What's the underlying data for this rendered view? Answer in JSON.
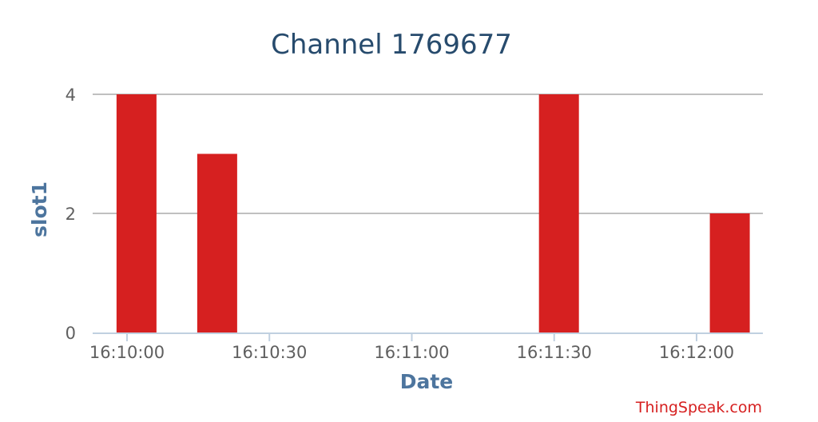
{
  "chart_data": {
    "type": "bar",
    "title": "Channel 1769677",
    "xlabel": "Date",
    "ylabel": "slot1",
    "x_tick_labels": [
      "16:10:00",
      "16:10:30",
      "16:11:00",
      "16:11:30",
      "16:12:00"
    ],
    "x_tick_seconds": [
      0,
      30,
      60,
      90,
      120
    ],
    "y_ticks": [
      0,
      2,
      4
    ],
    "ylim": [
      0,
      4
    ],
    "grid": true,
    "bar_color": "#d62020",
    "points": [
      {
        "time": "16:10:02",
        "t": 2,
        "value": 4
      },
      {
        "time": "16:10:19",
        "t": 19,
        "value": 3
      },
      {
        "time": "16:11:31",
        "t": 91,
        "value": 4
      },
      {
        "time": "16:12:07",
        "t": 127,
        "value": 2
      }
    ]
  },
  "credit": "ThingSpeak.com"
}
